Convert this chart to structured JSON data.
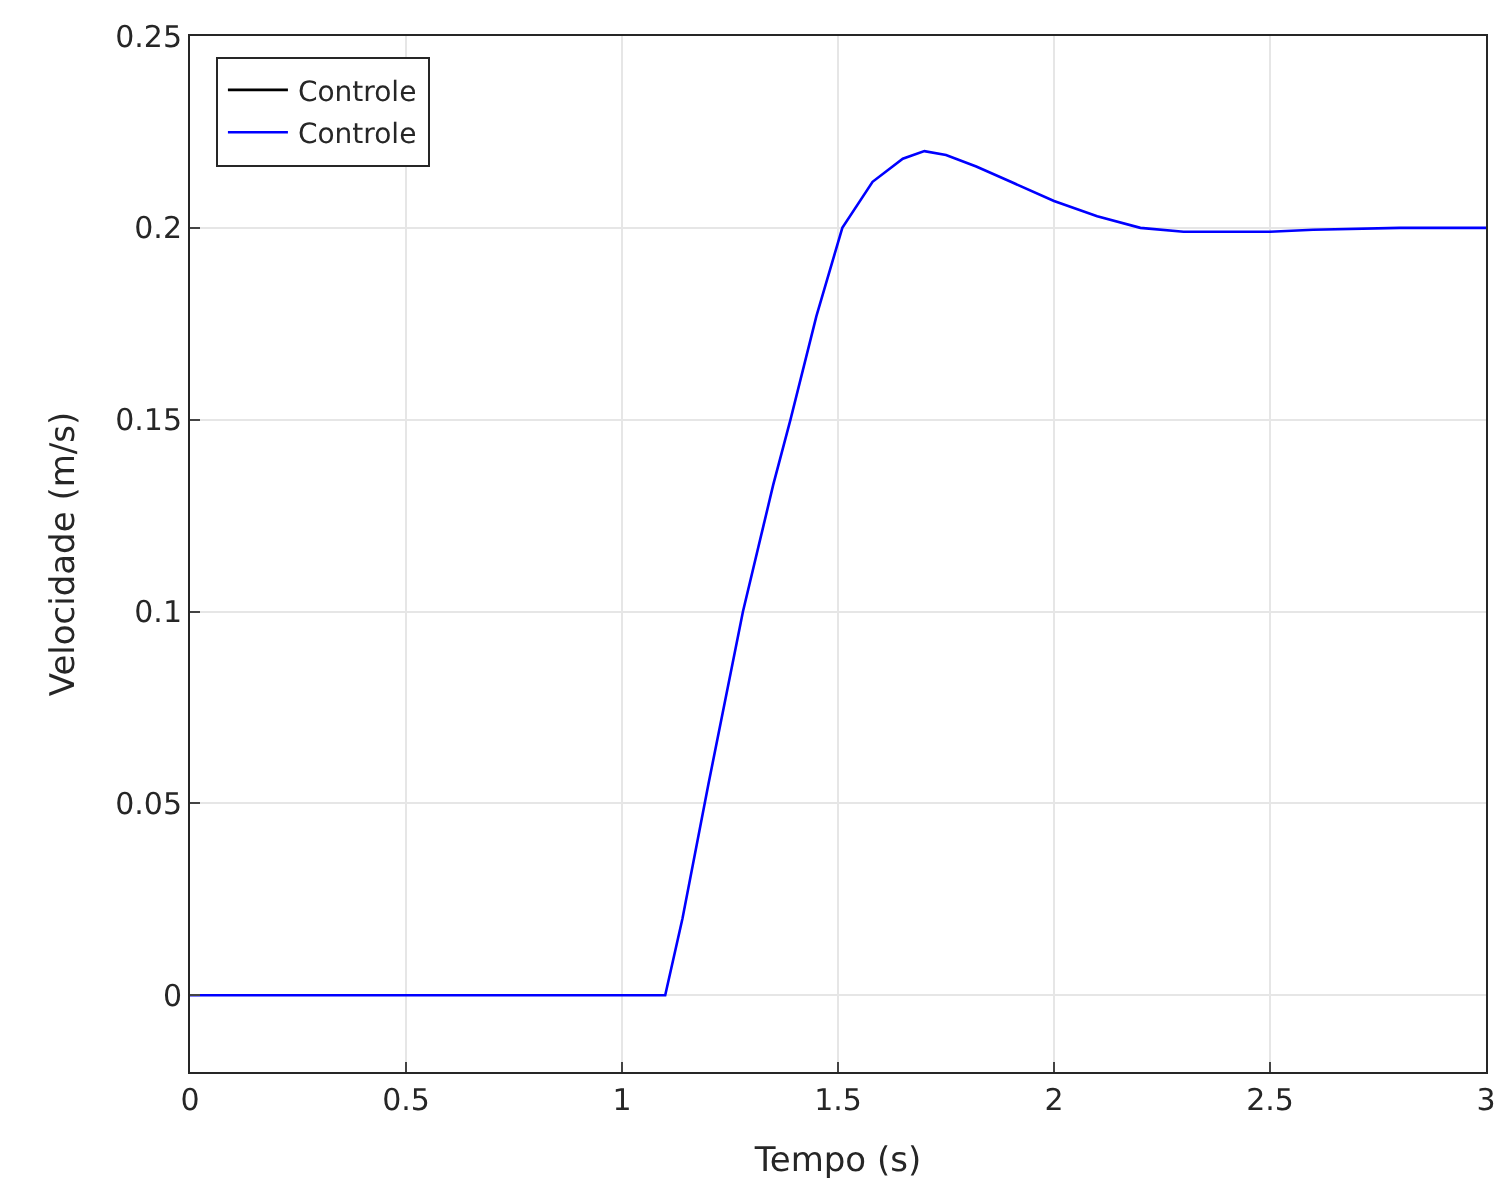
{
  "chart_data": {
    "type": "line",
    "xlabel": "Tempo (s)",
    "ylabel": "Velocidade (m/s)",
    "x": [
      0,
      0.5,
      1.0,
      1.1,
      1.14,
      1.2,
      1.28,
      1.35,
      1.39,
      1.45,
      1.51,
      1.58,
      1.65,
      1.7,
      1.75,
      1.82,
      1.9,
      2.0,
      2.1,
      2.2,
      2.3,
      2.4,
      2.5,
      2.6,
      2.8,
      3.0
    ],
    "series": [
      {
        "name": "Controle",
        "color": "#000000",
        "values": [
          null,
          null,
          null,
          null,
          null,
          null,
          null,
          null,
          null,
          null,
          null,
          null,
          null,
          null,
          null,
          null,
          null,
          null,
          null,
          null,
          null,
          null,
          null,
          null,
          null,
          null
        ]
      },
      {
        "name": "Controle",
        "color": "#0000ff",
        "values": [
          0,
          0,
          0,
          0,
          0.02,
          0.055,
          0.1,
          0.133,
          0.15,
          0.177,
          0.2,
          0.212,
          0.218,
          0.22,
          0.219,
          0.216,
          0.212,
          0.207,
          0.203,
          0.2,
          0.199,
          0.199,
          0.199,
          0.1995,
          0.2,
          0.2
        ]
      }
    ],
    "xlim": [
      0,
      3
    ],
    "xticks": [
      0,
      0.5,
      1,
      1.5,
      2,
      2.5,
      3
    ],
    "ylim": [
      -0.02,
      0.25
    ],
    "yticks": [
      0,
      0.05,
      0.1,
      0.15,
      0.2,
      0.25
    ],
    "grid": true,
    "legend": "top left",
    "marker": "none",
    "line_style": "solid"
  }
}
